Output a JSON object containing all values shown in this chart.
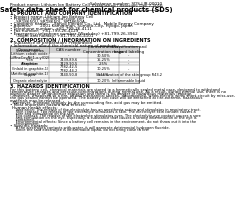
{
  "title": "Safety data sheet for chemical products (SDS)",
  "header_left": "Product name: Lithium Ion Battery Cell",
  "header_right_line1": "Substance number: SDS-LIB-00010",
  "header_right_line2": "Established / Revision: Dec.7.2016",
  "section1_title": "1. PRODUCT AND COMPANY IDENTIFICATION",
  "section1_lines": [
    "• Product name: Lithium Ion Battery Cell",
    "• Product code: Cylindrical-type cell",
    "     SR18650U, SR18650L, SR18650A",
    "• Company name:     Sanyo Electric Co., Ltd.  Mobile Energy Company",
    "• Address:       2001 Kamiaiman, Sumoto-City, Hyogo, Japan",
    "• Telephone number:  +81-799-26-4111",
    "• Fax number:  +81-799-26-4129",
    "• Emergency telephone number (Weekday) +81-799-26-3962",
    "     (Night and holiday) +81-799-26-4101"
  ],
  "section2_title": "2. COMPOSITION / INFORMATION ON INGREDIENTS",
  "section2_intro": "• Substance or preparation: Preparation",
  "section2_sub": "• Information about the chemical nature of product:",
  "table_headers": [
    "Component",
    "CAS number",
    "Concentration /\nConcentration range",
    "Classification and\nhazard labeling"
  ],
  "table_col2": "Several names",
  "table_rows": [
    [
      "Lithium cobalt oxide\n(LiMnxCoyNi(1-x-y)O2)",
      "-",
      "30-50%",
      "-"
    ],
    [
      "Iron",
      "7439-89-6",
      "15-25%",
      "-"
    ],
    [
      "Aluminum",
      "7429-90-5",
      "2-5%",
      "-"
    ],
    [
      "Graphite\n(Inlaid in graphite-1)\n(Artificial graphite-1)",
      "7782-42-5\n7782-44-2",
      "10-25%",
      "-"
    ],
    [
      "Copper",
      "7440-50-8",
      "5-15%",
      "Sensitization of the skin group R43.2"
    ],
    [
      "Organic electrolyte",
      "-",
      "10-20%",
      "Inflammable liquid"
    ]
  ],
  "section3_title": "3. HAZARDS IDENTIFICATION",
  "section3_para1": "For this battery cell, chemical materials are stored in a hermetically sealed metal case, designed to withstand\ntemperature changes and pressure-concentrations during normal use. As a result, during normal use, there is no\nphysical danger of ignition or explosion and there is no danger of hazardous materials leakage.\n  However, if exposed to a fire, added mechanical shocks, decomposed, when electric wires short-circuit by miss-use,\nthe gas sealed cannot be operated. The battery cell case will be breached at fire-extreme, hazardous\nmaterials may be released.\n  Moreover, if heated strongly by the surrounding fire, acid gas may be emitted.",
  "section3_sub1": "• Most important hazard and effects:",
  "section3_human": "Human health effects:",
  "section3_lines2": [
    "     Inhalation: The release of the electrolyte has an anesthesia action and stimulates in respiratory tract.",
    "     Skin contact: The release of the electrolyte stimulates a skin. The electrolyte skin contact causes a",
    "     sore and stimulation on the skin.",
    "     Eye contact: The release of the electrolyte stimulates eyes. The electrolyte eye contact causes a sore",
    "     and stimulation on the eye. Especially, a substance that causes a strong inflammation of the eye is",
    "     contained.",
    "     Environmental effects: Since a battery cell remains in the environment, do not throw out it into the",
    "     environment."
  ],
  "section3_specific": "• Specific hazards:",
  "section3_spec_lines": [
    "     If the electrolyte contacts with water, it will generate detrimental hydrogen fluoride.",
    "     Since the said electrolyte is inflammable liquid, do not bring close to fire."
  ],
  "bg_color": "#ffffff",
  "text_color": "#000000",
  "table_header_bg": "#d0d0d0",
  "table_line_color": "#666666"
}
